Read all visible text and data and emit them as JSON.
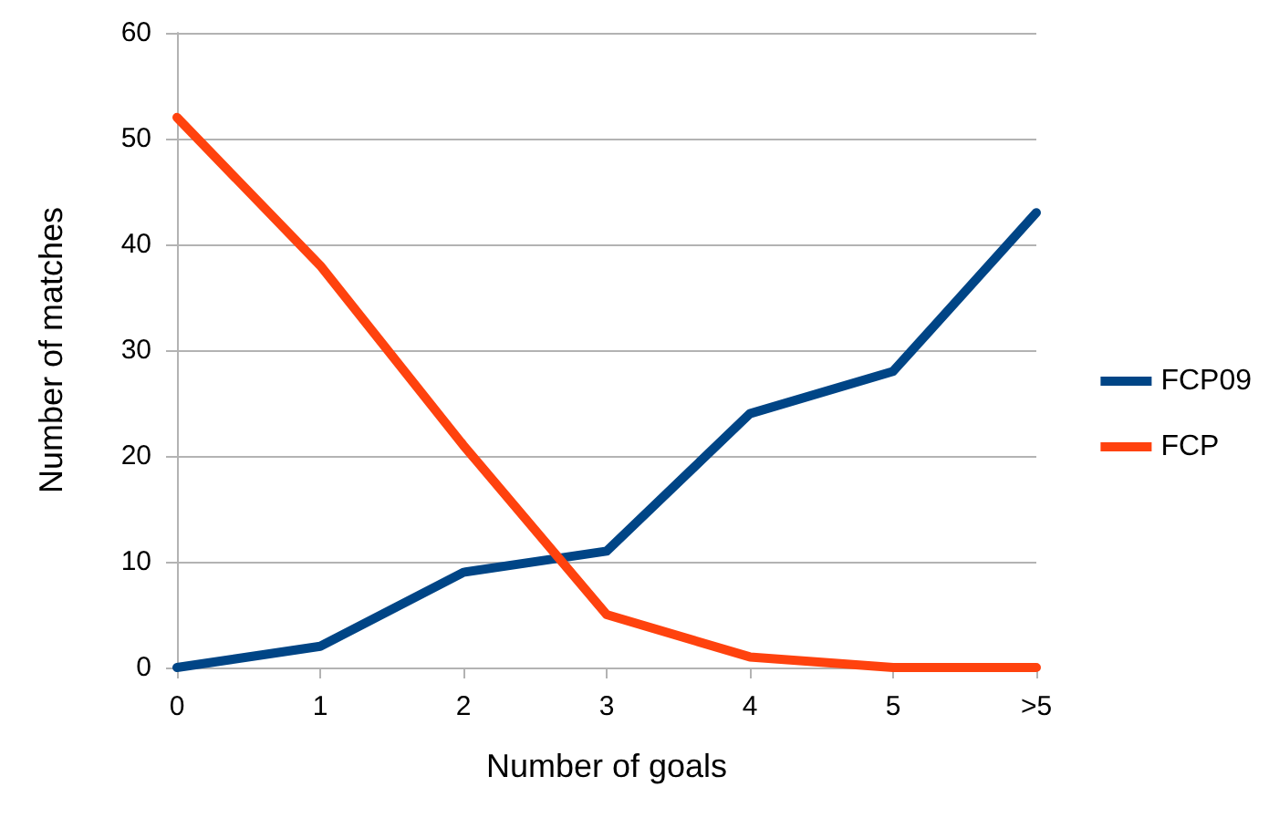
{
  "chart_data": {
    "type": "line",
    "xlabel": "Number of goals",
    "ylabel": "Number of matches",
    "categories": [
      "0",
      "1",
      "2",
      "3",
      "4",
      "5",
      ">5"
    ],
    "series": [
      {
        "name": "FCP09",
        "color": "#004586",
        "values": [
          0,
          2,
          9,
          11,
          24,
          28,
          43
        ]
      },
      {
        "name": "FCP",
        "color": "#ff420e",
        "values": [
          52,
          38,
          21,
          5,
          1,
          0,
          0
        ]
      }
    ],
    "ylim": [
      0,
      60
    ],
    "yticks": [
      0,
      10,
      20,
      30,
      40,
      50,
      60
    ],
    "grid": "y",
    "legend": "right",
    "marker": "none",
    "line_style": "solid"
  }
}
